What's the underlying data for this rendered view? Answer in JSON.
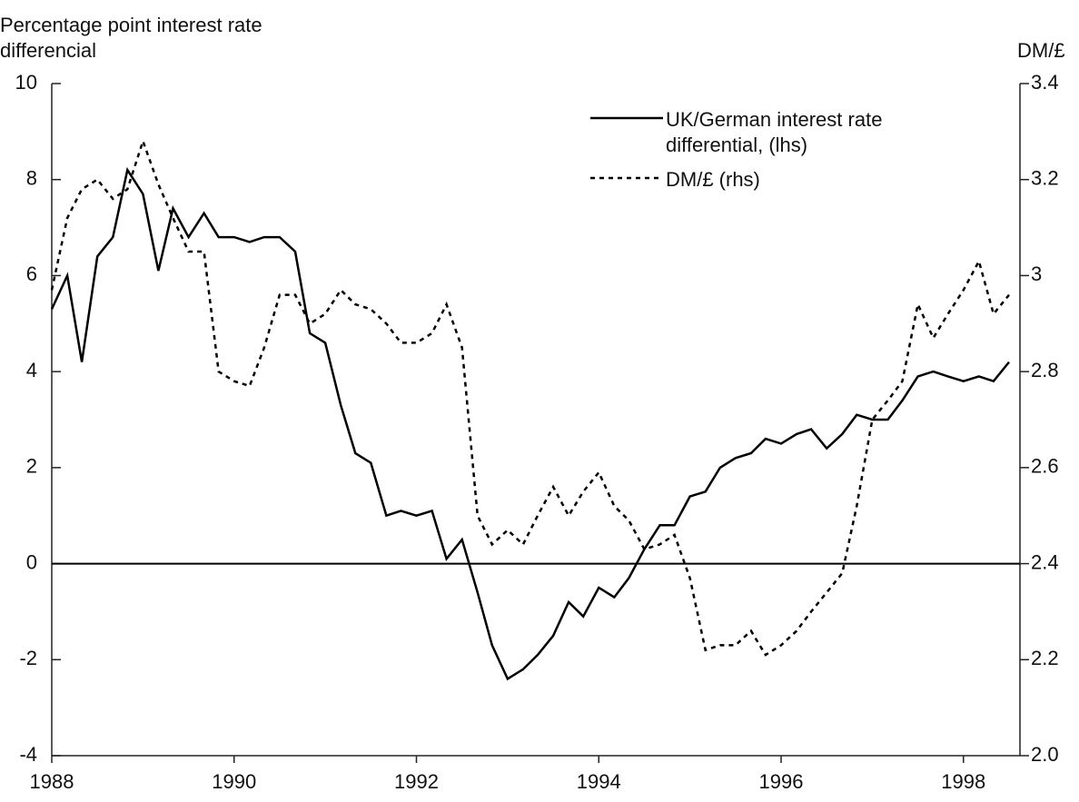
{
  "chart_data": {
    "type": "line",
    "ylabel": "Percentage point interest rate differencial",
    "y2label": "DM/£",
    "x": [
      1988,
      1988.17,
      1988.33,
      1988.5,
      1988.67,
      1988.83,
      1989,
      1989.17,
      1989.33,
      1989.5,
      1989.67,
      1989.83,
      1990,
      1990.17,
      1990.33,
      1990.5,
      1990.67,
      1990.83,
      1991,
      1991.17,
      1991.33,
      1991.5,
      1991.67,
      1991.83,
      1992,
      1992.17,
      1992.33,
      1992.5,
      1992.67,
      1992.83,
      1993,
      1993.17,
      1993.33,
      1993.5,
      1993.67,
      1993.83,
      1994,
      1994.17,
      1994.33,
      1994.5,
      1994.67,
      1994.83,
      1995,
      1995.17,
      1995.33,
      1995.5,
      1995.67,
      1995.83,
      1996,
      1996.17,
      1996.33,
      1996.5,
      1996.67,
      1996.83,
      1997,
      1997.17,
      1997.33,
      1997.5,
      1997.67,
      1997.83,
      1998,
      1998.17,
      1998.33,
      1998.5
    ],
    "series": [
      {
        "name": "UK/German interest rate differential, (lhs)",
        "color": "#000000",
        "style": "solid",
        "values": [
          5.3,
          6.0,
          4.2,
          6.4,
          6.8,
          8.2,
          7.7,
          6.1,
          7.4,
          6.8,
          7.3,
          6.8,
          6.8,
          6.7,
          6.8,
          6.8,
          6.5,
          4.8,
          4.6,
          3.3,
          2.3,
          2.1,
          1.0,
          1.1,
          1.0,
          1.1,
          0.1,
          0.5,
          -0.6,
          -1.7,
          -2.4,
          -2.2,
          -1.9,
          -1.5,
          -0.8,
          -1.1,
          -0.5,
          -0.7,
          -0.3,
          0.3,
          0.8,
          0.8,
          1.4,
          1.5,
          2.0,
          2.2,
          2.3,
          2.6,
          2.5,
          2.7,
          2.8,
          2.4,
          2.7,
          3.1,
          3.0,
          3.0,
          3.4,
          3.9,
          4.0,
          3.9,
          3.8,
          3.9,
          3.8,
          4.2
        ]
      },
      {
        "name": "DM/£ (rhs)",
        "color": "#000000",
        "style": "dashed",
        "axis": "y2",
        "values": [
          2.97,
          3.12,
          3.18,
          3.2,
          3.16,
          3.18,
          3.28,
          3.19,
          3.12,
          3.05,
          3.05,
          2.8,
          2.78,
          2.77,
          2.85,
          2.96,
          2.96,
          2.9,
          2.92,
          2.97,
          2.94,
          2.93,
          2.9,
          2.86,
          2.86,
          2.88,
          2.94,
          2.85,
          2.5,
          2.44,
          2.47,
          2.44,
          2.5,
          2.56,
          2.5,
          2.55,
          2.59,
          2.52,
          2.49,
          2.43,
          2.44,
          2.46,
          2.37,
          2.22,
          2.23,
          2.23,
          2.26,
          2.21,
          2.23,
          2.26,
          2.3,
          2.34,
          2.38,
          2.52,
          2.7,
          2.74,
          2.78,
          2.94,
          2.87,
          2.92,
          2.97,
          3.03,
          2.92,
          2.96
        ]
      }
    ],
    "xlim": [
      1988,
      1998.62
    ],
    "xticks": [
      1988,
      1990,
      1992,
      1994,
      1996,
      1998
    ],
    "ylim": [
      -4,
      10
    ],
    "yticks": [
      -4,
      -2,
      0,
      2,
      4,
      6,
      8,
      10
    ],
    "y2lim": [
      2.0,
      3.4
    ],
    "y2ticks": [
      {
        "value": 2.0,
        "label": "2.0"
      },
      2.2,
      2.4,
      2.6,
      2.8,
      3.0,
      3.2,
      3.4
    ],
    "zero_line": true,
    "legend": "upper right"
  }
}
